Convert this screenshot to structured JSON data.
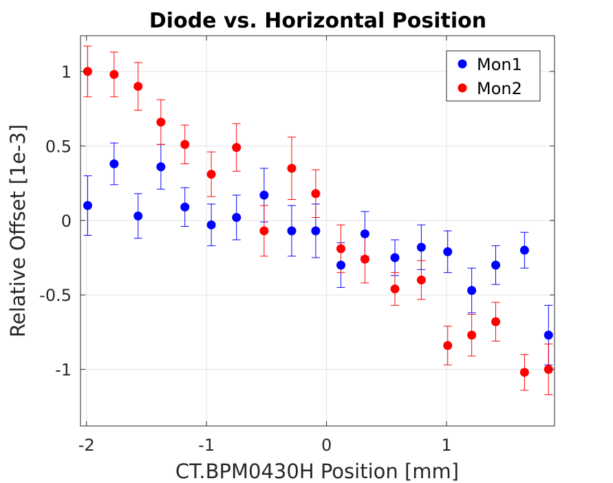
{
  "chart_data": {
    "type": "scatter",
    "title": "Diode vs. Horizontal Position",
    "xlabel": "CT.BPM0430H Position [mm]",
    "ylabel": "Relative Offset [1e-3]",
    "xlim": [
      -2.05,
      1.9
    ],
    "ylim": [
      -1.38,
      1.24
    ],
    "xticks": [
      -2,
      -1,
      0,
      1
    ],
    "xtick_labels": [
      "-2",
      "-1",
      "0",
      "1"
    ],
    "yticks": [
      -1,
      -0.5,
      0,
      0.5,
      1
    ],
    "ytick_labels": [
      "-1",
      "-0.5",
      "0",
      "0.5",
      "1"
    ],
    "grid": true,
    "legend_position": "top-right",
    "series": [
      {
        "name": "Mon1",
        "color": "#0000ff",
        "points": [
          {
            "x": -1.99,
            "y": 0.1,
            "err": 0.2
          },
          {
            "x": -1.77,
            "y": 0.38,
            "err": 0.14
          },
          {
            "x": -1.57,
            "y": 0.03,
            "err": 0.15
          },
          {
            "x": -1.38,
            "y": 0.36,
            "err": 0.15
          },
          {
            "x": -1.18,
            "y": 0.09,
            "err": 0.13
          },
          {
            "x": -0.96,
            "y": -0.03,
            "err": 0.14
          },
          {
            "x": -0.75,
            "y": 0.02,
            "err": 0.15
          },
          {
            "x": -0.52,
            "y": 0.17,
            "err": 0.18
          },
          {
            "x": -0.29,
            "y": -0.07,
            "err": 0.17
          },
          {
            "x": -0.09,
            "y": -0.07,
            "err": 0.18
          },
          {
            "x": 0.12,
            "y": -0.3,
            "err": 0.15
          },
          {
            "x": 0.32,
            "y": -0.09,
            "err": 0.15
          },
          {
            "x": 0.57,
            "y": -0.25,
            "err": 0.12
          },
          {
            "x": 0.79,
            "y": -0.18,
            "err": 0.15
          },
          {
            "x": 1.01,
            "y": -0.21,
            "err": 0.14
          },
          {
            "x": 1.21,
            "y": -0.47,
            "err": 0.15
          },
          {
            "x": 1.41,
            "y": -0.3,
            "err": 0.13
          },
          {
            "x": 1.65,
            "y": -0.2,
            "err": 0.12
          },
          {
            "x": 1.85,
            "y": -0.77,
            "err": 0.2
          }
        ]
      },
      {
        "name": "Mon2",
        "color": "#ff0000",
        "points": [
          {
            "x": -1.99,
            "y": 1.0,
            "err": 0.17
          },
          {
            "x": -1.77,
            "y": 0.98,
            "err": 0.15
          },
          {
            "x": -1.57,
            "y": 0.9,
            "err": 0.16
          },
          {
            "x": -1.38,
            "y": 0.66,
            "err": 0.15
          },
          {
            "x": -1.18,
            "y": 0.51,
            "err": 0.13
          },
          {
            "x": -0.96,
            "y": 0.31,
            "err": 0.15
          },
          {
            "x": -0.75,
            "y": 0.49,
            "err": 0.16
          },
          {
            "x": -0.52,
            "y": -0.07,
            "err": 0.17
          },
          {
            "x": -0.29,
            "y": 0.35,
            "err": 0.21
          },
          {
            "x": -0.09,
            "y": 0.18,
            "err": 0.16
          },
          {
            "x": 0.12,
            "y": -0.19,
            "err": 0.16
          },
          {
            "x": 0.32,
            "y": -0.26,
            "err": 0.16
          },
          {
            "x": 0.57,
            "y": -0.46,
            "err": 0.11
          },
          {
            "x": 0.79,
            "y": -0.4,
            "err": 0.13
          },
          {
            "x": 1.01,
            "y": -0.84,
            "err": 0.13
          },
          {
            "x": 1.21,
            "y": -0.77,
            "err": 0.14
          },
          {
            "x": 1.41,
            "y": -0.68,
            "err": 0.13
          },
          {
            "x": 1.65,
            "y": -1.02,
            "err": 0.12
          },
          {
            "x": 1.85,
            "y": -1.0,
            "err": 0.17
          }
        ]
      }
    ]
  }
}
